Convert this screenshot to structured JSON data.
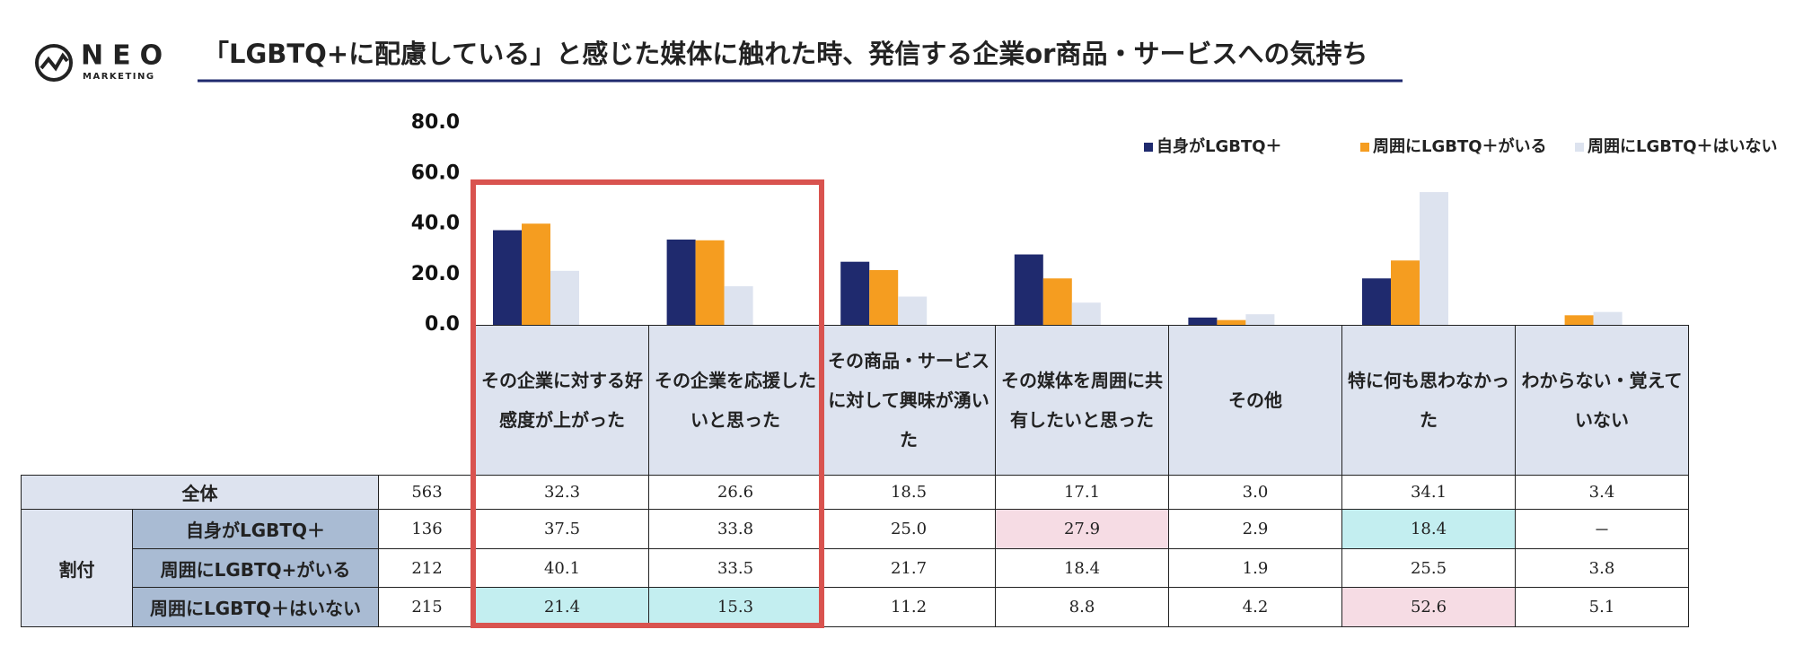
{
  "logo": {
    "name": "NEO",
    "sub": "MARKETING"
  },
  "chart_data": {
    "type": "bar",
    "title": "「LGBTQ+に配慮している」と感じた媒体に触れた時、発信する企業or商品・サービスへの気持ち",
    "categories": [
      "その企業に対する好感度が上がった",
      "その企業を応援したいと思った",
      "その商品・サービスに対して興味が湧いた",
      "その媒体を周囲に共有したいと思った",
      "その他",
      "特に何も思わなかった",
      "わからない・覚えていない"
    ],
    "series": [
      {
        "name": "自身がLGBTQ＋",
        "color": "#1f2a6e",
        "values": [
          37.5,
          33.8,
          25.0,
          27.9,
          2.9,
          18.4,
          null
        ]
      },
      {
        "name": "周囲にLGBTQ＋がいる",
        "color": "#f59d20",
        "values": [
          40.1,
          33.5,
          21.7,
          18.4,
          1.9,
          25.5,
          3.8
        ]
      },
      {
        "name": "周囲にLGBTQ＋はいない",
        "color": "#dde3ef",
        "values": [
          21.4,
          15.3,
          11.2,
          8.8,
          4.2,
          52.6,
          5.1
        ]
      }
    ],
    "ylim": [
      0,
      80
    ],
    "yticks": [
      {
        "value": 0,
        "label": "0.0"
      },
      {
        "value": 20,
        "label": "20.0"
      },
      {
        "value": 40,
        "label": "40.0"
      },
      {
        "value": 60,
        "label": "60.0"
      },
      {
        "value": 80,
        "label": "80.0"
      }
    ],
    "legend": "top-right"
  },
  "table": {
    "group": "割付",
    "rows": [
      {
        "label": "全体",
        "n": 563,
        "cells": [
          "32.3",
          "26.6",
          "18.5",
          "17.1",
          "3.0",
          "34.1",
          "3.4"
        ]
      },
      {
        "label": "自身がLGBTQ＋",
        "n": 136,
        "cells": [
          "37.5",
          "33.8",
          "25.0",
          "27.9",
          "2.9",
          "18.4",
          "－"
        ]
      },
      {
        "label": "周囲にLGBTQ+がいる",
        "n": 212,
        "cells": [
          "40.1",
          "33.5",
          "21.7",
          "18.4",
          "1.9",
          "25.5",
          "3.8"
        ]
      },
      {
        "label": "周囲にLGBTQ＋はいない",
        "n": 215,
        "cells": [
          "21.4",
          "15.3",
          "11.2",
          "8.8",
          "4.2",
          "52.6",
          "5.1"
        ]
      }
    ]
  }
}
